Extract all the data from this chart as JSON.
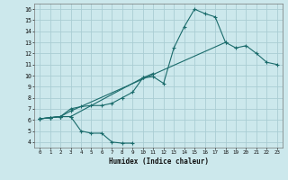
{
  "xlabel": "Humidex (Indice chaleur)",
  "bg_color": "#cce8ec",
  "grid_color": "#aacdd4",
  "line_color": "#1a6b6b",
  "xlim": [
    -0.5,
    23.5
  ],
  "ylim": [
    3.5,
    16.5
  ],
  "xticks": [
    0,
    1,
    2,
    3,
    4,
    5,
    6,
    7,
    8,
    9,
    10,
    11,
    12,
    13,
    14,
    15,
    16,
    17,
    18,
    19,
    20,
    21,
    22,
    23
  ],
  "yticks": [
    4,
    5,
    6,
    7,
    8,
    9,
    10,
    11,
    12,
    13,
    14,
    15,
    16
  ],
  "curves": [
    {
      "x": [
        0,
        1,
        2,
        3,
        4,
        5,
        6,
        7,
        8,
        9
      ],
      "y": [
        6.1,
        6.2,
        6.3,
        6.3,
        5.0,
        4.8,
        4.8,
        4.0,
        3.9,
        3.9
      ]
    },
    {
      "x": [
        0,
        1,
        2,
        3,
        10,
        11,
        12,
        13,
        14,
        15,
        16,
        17,
        18
      ],
      "y": [
        6.1,
        6.2,
        6.3,
        6.3,
        9.8,
        9.9,
        9.3,
        12.5,
        14.4,
        16.0,
        15.6,
        15.3,
        13.0
      ]
    },
    {
      "x": [
        0,
        1,
        2,
        3,
        4,
        5,
        6,
        7,
        8,
        9,
        10,
        11
      ],
      "y": [
        6.1,
        6.2,
        6.3,
        7.0,
        7.2,
        7.3,
        7.3,
        7.5,
        8.0,
        8.5,
        9.8,
        10.2
      ]
    },
    {
      "x": [
        0,
        1,
        2,
        3,
        18,
        19,
        20,
        21,
        22,
        23
      ],
      "y": [
        6.1,
        6.2,
        6.3,
        6.8,
        13.0,
        12.5,
        12.7,
        12.0,
        11.2,
        11.0
      ]
    }
  ]
}
